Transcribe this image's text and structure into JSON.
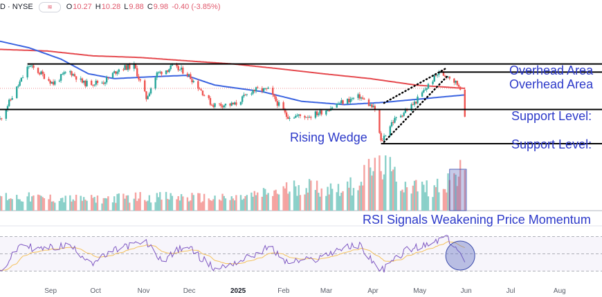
{
  "header": {
    "symbol": "D · NYSE",
    "pill_icon": "wave-icon",
    "open_label": "O",
    "open": "10.27",
    "high_label": "H",
    "high": "10.28",
    "low_label": "L",
    "low": "9.88",
    "close_label": "C",
    "close": "9.98",
    "change": "-0.40 (-3.85%)"
  },
  "annotations": {
    "overhead_1": "Overhead Area",
    "overhead_2": "Overhead Area",
    "support_1": "Support Level:",
    "support_2": "Support Level:",
    "rising_wedge": "Rising Wedge",
    "rsi_title": "RSI Signals Weakening Price Momentum"
  },
  "x_ticks": [
    {
      "label": "Sep",
      "year": false
    },
    {
      "label": "Oct",
      "year": false
    },
    {
      "label": "Nov",
      "year": false
    },
    {
      "label": "Dec",
      "year": false
    },
    {
      "label": "2025",
      "year": true
    },
    {
      "label": "Feb",
      "year": false
    },
    {
      "label": "Mar",
      "year": false
    },
    {
      "label": "Apr",
      "year": false
    },
    {
      "label": "May",
      "year": false
    },
    {
      "label": "Jun",
      "year": false
    },
    {
      "label": "Jul",
      "year": false
    },
    {
      "label": "Aug",
      "year": false
    }
  ],
  "colors": {
    "up": "#26a69a",
    "down": "#ef5350",
    "vol_up": "#8ad0c9",
    "vol_down": "#f5a3a1",
    "ma_short": "#3a63e0",
    "ma_long": "#e5484d",
    "rsi": "#7e57c2",
    "rsi_ma": "#f4c15b",
    "annotation": "#2c39c9",
    "level_line": "#000000"
  },
  "chart_data": {
    "type": "candlestick",
    "price_path": [
      [
        "2024-08-01",
        9.9
      ],
      [
        "2024-08-20",
        11.55
      ],
      [
        "2024-08-28",
        11.3
      ],
      [
        "2024-09-05",
        11.0
      ],
      [
        "2024-09-15",
        11.4
      ],
      [
        "2024-09-25",
        11.0
      ],
      [
        "2024-10-08",
        11.05
      ],
      [
        "2024-10-18",
        11.45
      ],
      [
        "2024-10-28",
        11.55
      ],
      [
        "2024-11-05",
        10.55
      ],
      [
        "2024-11-12",
        11.3
      ],
      [
        "2024-11-22",
        11.5
      ],
      [
        "2024-12-01",
        11.35
      ],
      [
        "2024-12-10",
        10.85
      ],
      [
        "2024-12-18",
        10.35
      ],
      [
        "2025-01-02",
        10.35
      ],
      [
        "2025-01-14",
        10.8
      ],
      [
        "2025-01-24",
        10.8
      ],
      [
        "2025-02-05",
        10.0
      ],
      [
        "2025-02-20",
        10.0
      ],
      [
        "2025-03-01",
        10.15
      ],
      [
        "2025-03-12",
        10.4
      ],
      [
        "2025-03-25",
        10.6
      ],
      [
        "2025-04-04",
        10.2
      ],
      [
        "2025-04-08",
        9.2
      ],
      [
        "2025-04-15",
        9.8
      ],
      [
        "2025-04-30",
        10.4
      ],
      [
        "2025-05-15",
        11.3
      ],
      [
        "2025-05-22",
        11.25
      ],
      [
        "2025-05-30",
        10.9
      ],
      [
        "2025-06-02",
        9.98
      ]
    ],
    "ma50": [
      [
        "2024-08-01",
        12.3
      ],
      [
        "2024-08-20",
        12.1
      ],
      [
        "2024-09-10",
        11.75
      ],
      [
        "2024-09-28",
        11.3
      ],
      [
        "2024-10-15",
        11.15
      ],
      [
        "2024-11-05",
        11.2
      ],
      [
        "2024-12-01",
        11.25
      ],
      [
        "2024-12-20",
        10.95
      ],
      [
        "2025-01-20",
        10.75
      ],
      [
        "2025-02-15",
        10.45
      ],
      [
        "2025-03-15",
        10.35
      ],
      [
        "2025-04-10",
        10.42
      ],
      [
        "2025-05-10",
        10.55
      ],
      [
        "2025-06-02",
        10.65
      ]
    ],
    "ma200": [
      [
        "2024-08-01",
        12.05
      ],
      [
        "2024-09-01",
        12.0
      ],
      [
        "2024-10-01",
        11.85
      ],
      [
        "2024-11-01",
        11.8
      ],
      [
        "2024-12-01",
        11.7
      ],
      [
        "2025-01-01",
        11.6
      ],
      [
        "2025-02-01",
        11.45
      ],
      [
        "2025-03-01",
        11.3
      ],
      [
        "2025-04-01",
        11.15
      ],
      [
        "2025-05-01",
        10.95
      ],
      [
        "2025-06-02",
        10.85
      ]
    ],
    "levels": [
      {
        "label": "Overhead Area",
        "value": 11.6,
        "from": "2024-08-19",
        "to": "2025-08-31"
      },
      {
        "label": "Overhead Area",
        "value": 11.35,
        "from": "2025-05-16",
        "to": "2025-08-31"
      },
      {
        "label": "Support Level:",
        "value": 10.2,
        "from": "2024-08-01",
        "to": "2025-08-31"
      },
      {
        "label": "Support Level:",
        "value": 9.15,
        "from": "2025-04-08",
        "to": "2025-08-31"
      }
    ],
    "wedge": {
      "upper": [
        [
          "2025-04-10",
          10.4
        ],
        [
          "2025-05-20",
          11.45
        ]
      ],
      "lower": [
        [
          "2025-04-10",
          9.2
        ],
        [
          "2025-05-22",
          11.25
        ]
      ]
    },
    "volume_range": [
      0,
      1
    ],
    "volume_path": [
      [
        "2024-08-01",
        0.28
      ],
      [
        "2024-09-01",
        0.24
      ],
      [
        "2024-10-01",
        0.22
      ],
      [
        "2024-11-01",
        0.27
      ],
      [
        "2024-12-01",
        0.26
      ],
      [
        "2025-01-01",
        0.23
      ],
      [
        "2025-02-01",
        0.38
      ],
      [
        "2025-02-15",
        0.5
      ],
      [
        "2025-03-01",
        0.42
      ],
      [
        "2025-03-20",
        0.48
      ],
      [
        "2025-04-08",
        0.95
      ],
      [
        "2025-04-20",
        0.55
      ],
      [
        "2025-05-10",
        0.42
      ],
      [
        "2025-06-02",
        0.75
      ]
    ],
    "rsi_range": [
      20,
      80
    ],
    "rsi_path": [
      [
        "2024-08-01",
        28
      ],
      [
        "2024-08-15",
        62
      ],
      [
        "2024-08-25",
        55
      ],
      [
        "2024-09-15",
        60
      ],
      [
        "2024-10-01",
        40
      ],
      [
        "2024-10-20",
        58
      ],
      [
        "2024-11-05",
        63
      ],
      [
        "2024-11-15",
        42
      ],
      [
        "2024-12-01",
        60
      ],
      [
        "2024-12-20",
        32
      ],
      [
        "2025-01-10",
        45
      ],
      [
        "2025-01-25",
        58
      ],
      [
        "2025-02-05",
        40
      ],
      [
        "2025-02-25",
        44
      ],
      [
        "2025-03-10",
        55
      ],
      [
        "2025-03-25",
        60
      ],
      [
        "2025-04-08",
        30
      ],
      [
        "2025-04-25",
        55
      ],
      [
        "2025-05-10",
        60
      ],
      [
        "2025-05-20",
        70
      ],
      [
        "2025-05-28",
        55
      ],
      [
        "2025-06-02",
        38
      ]
    ],
    "x_range": [
      "2024-08-01",
      "2025-08-31"
    ],
    "y_range": [
      9.0,
      12.4
    ]
  }
}
